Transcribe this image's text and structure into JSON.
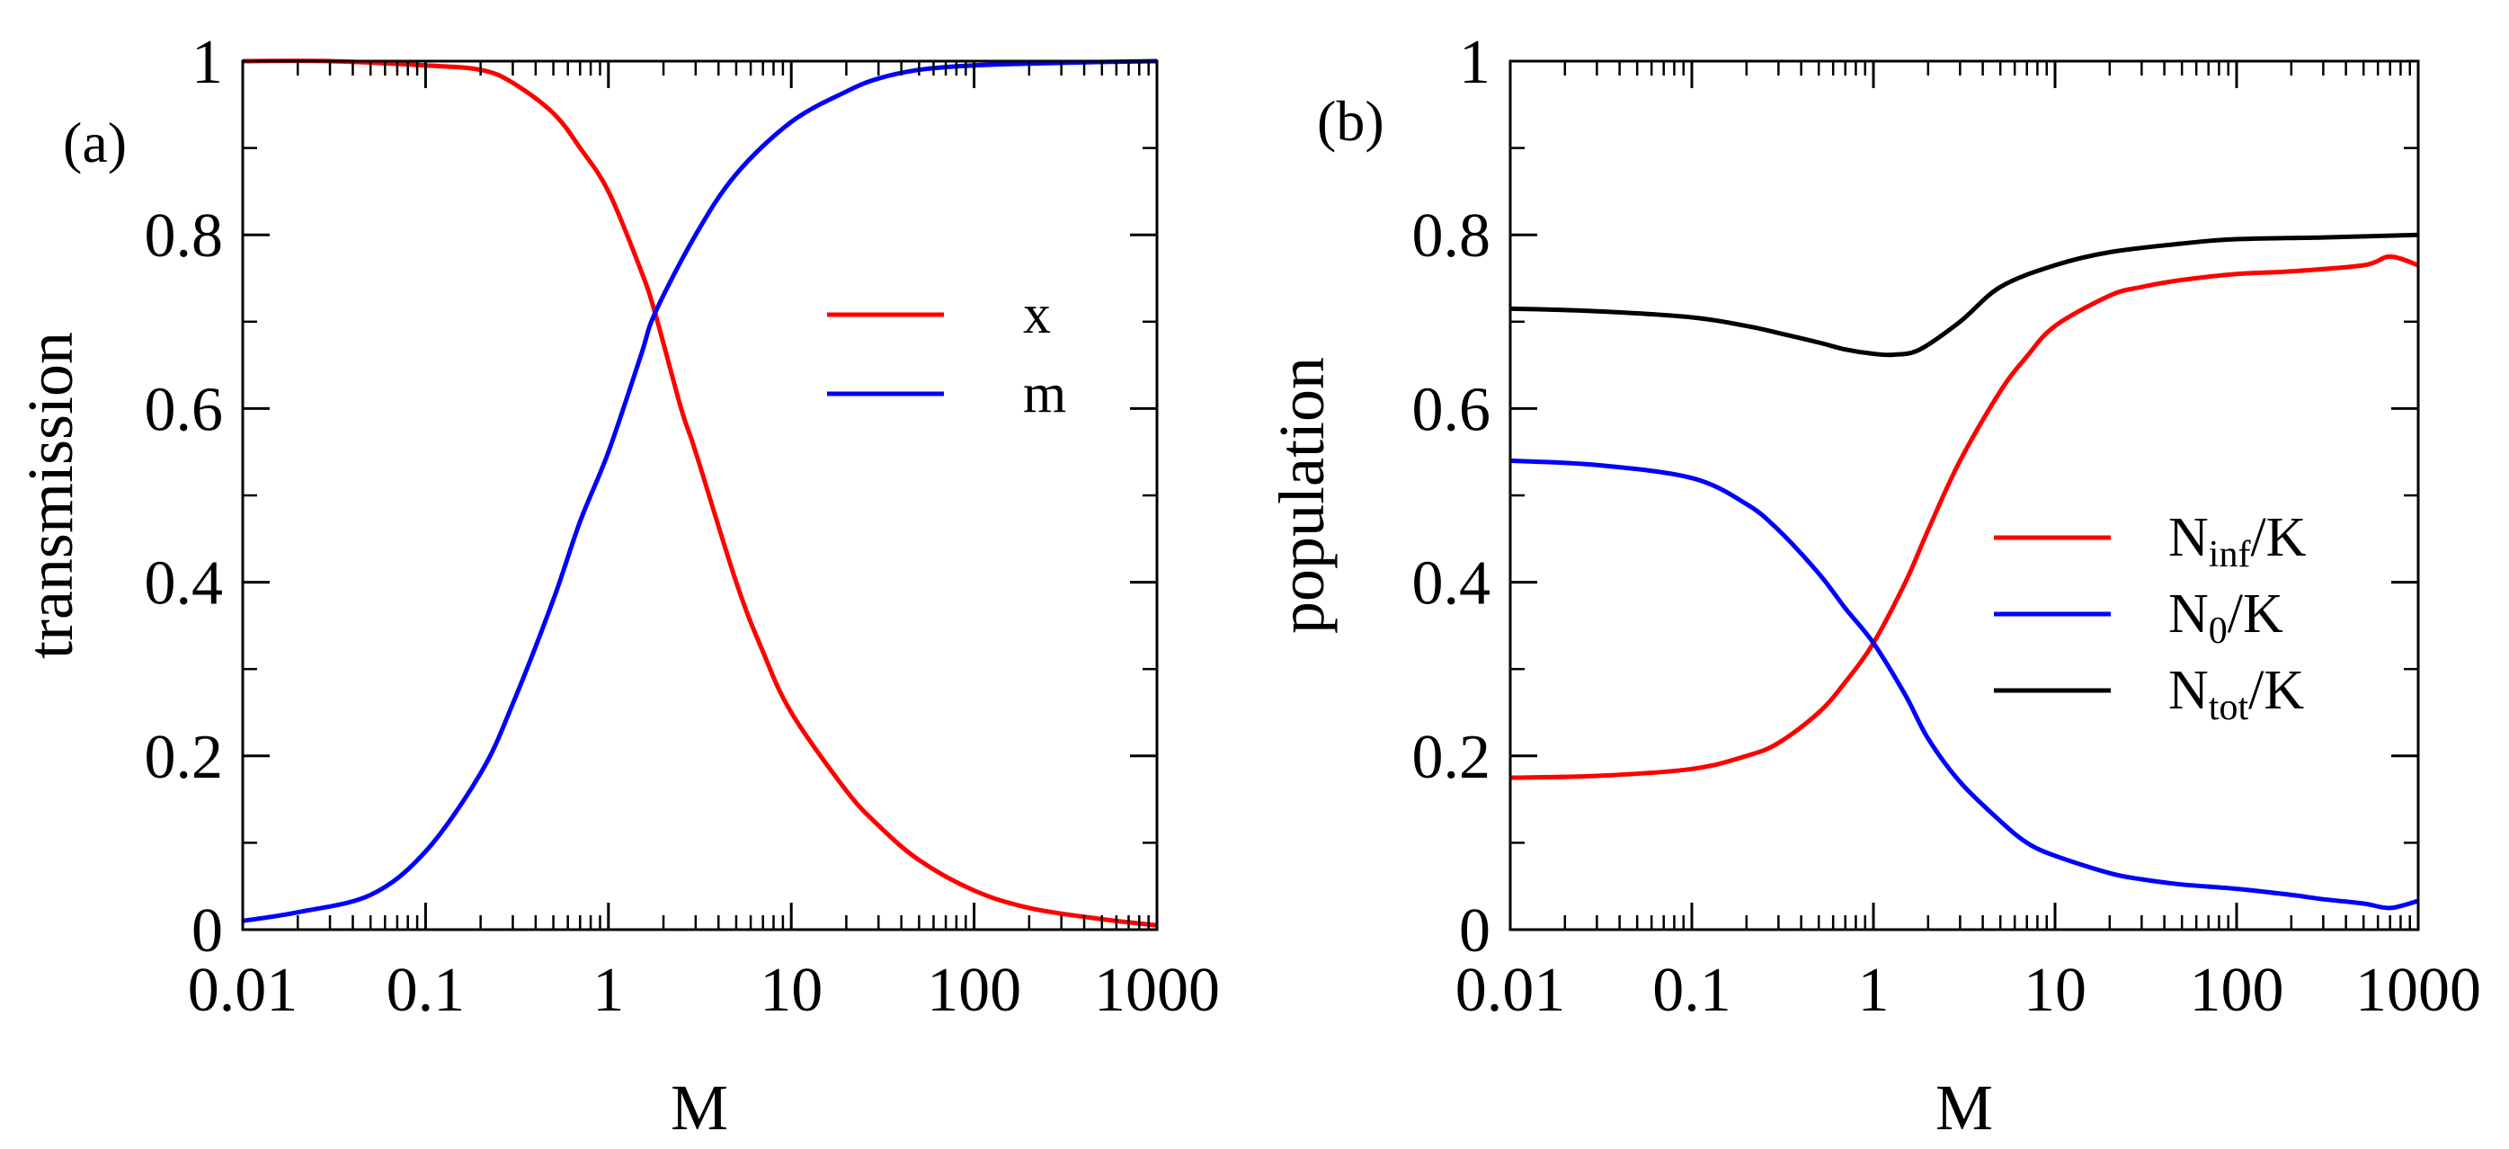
{
  "chart_data": [
    {
      "type": "line",
      "panel_label": "(a)",
      "xlabel": "M",
      "ylabel": "transmission",
      "xscale": "log",
      "xlim": [
        0.01,
        1000
      ],
      "ylim": [
        0,
        1
      ],
      "x_ticks": [
        {
          "value": 0.01,
          "label": "0.01"
        },
        {
          "value": 0.1,
          "label": "0.1"
        },
        {
          "value": 1,
          "label": "1"
        },
        {
          "value": 10,
          "label": "10"
        },
        {
          "value": 100,
          "label": "100"
        },
        {
          "value": 1000,
          "label": "1000"
        }
      ],
      "y_ticks": [
        {
          "value": 0,
          "label": "0"
        },
        {
          "value": 0.2,
          "label": "0.2"
        },
        {
          "value": 0.4,
          "label": "0.4"
        },
        {
          "value": 0.6,
          "label": "0.6"
        },
        {
          "value": 0.8,
          "label": "0.8"
        },
        {
          "value": 1,
          "label": "1"
        }
      ],
      "legend_position": "center-right",
      "series": [
        {
          "name": "x",
          "label": "x",
          "color": "#ff0000",
          "x": [
            0.01,
            0.03,
            0.1,
            0.2,
            0.3,
            0.5,
            0.7,
            1,
            1.5,
            1.8,
            2.5,
            3,
            5,
            7,
            10,
            20,
            30,
            50,
            100,
            200,
            500,
            1000
          ],
          "y": [
            1.0,
            1.0,
            0.995,
            0.99,
            0.975,
            0.94,
            0.9,
            0.85,
            0.76,
            0.71,
            0.6,
            0.55,
            0.4,
            0.32,
            0.25,
            0.16,
            0.12,
            0.08,
            0.045,
            0.025,
            0.012,
            0.005
          ]
        },
        {
          "name": "m",
          "label": "m",
          "color": "#0000ff",
          "x": [
            0.01,
            0.02,
            0.05,
            0.1,
            0.2,
            0.3,
            0.5,
            0.7,
            1,
            1.5,
            1.8,
            3,
            5,
            10,
            20,
            30,
            50,
            100,
            300,
            1000
          ],
          "y": [
            0.01,
            0.02,
            0.04,
            0.09,
            0.18,
            0.26,
            0.38,
            0.47,
            0.55,
            0.66,
            0.71,
            0.8,
            0.87,
            0.93,
            0.965,
            0.98,
            0.99,
            0.995,
            0.998,
            1.0
          ]
        }
      ]
    },
    {
      "type": "line",
      "panel_label": "(b)",
      "xlabel": "M",
      "ylabel": "population",
      "xscale": "log",
      "xlim": [
        0.01,
        1000
      ],
      "ylim": [
        0,
        1
      ],
      "x_ticks": [
        {
          "value": 0.01,
          "label": "0.01"
        },
        {
          "value": 0.1,
          "label": "0.1"
        },
        {
          "value": 1,
          "label": "1"
        },
        {
          "value": 10,
          "label": "10"
        },
        {
          "value": 100,
          "label": "100"
        },
        {
          "value": 1000,
          "label": "1000"
        }
      ],
      "y_ticks": [
        {
          "value": 0,
          "label": "0"
        },
        {
          "value": 0.2,
          "label": "0.2"
        },
        {
          "value": 0.4,
          "label": "0.4"
        },
        {
          "value": 0.6,
          "label": "0.6"
        },
        {
          "value": 0.8,
          "label": "0.8"
        },
        {
          "value": 1,
          "label": "1"
        }
      ],
      "legend_position": "lower-right",
      "series": [
        {
          "name": "N_inf/K",
          "label_main": "N",
          "label_sub": "inf",
          "label_tail": "/K",
          "color": "#ff0000",
          "x": [
            0.01,
            0.03,
            0.1,
            0.2,
            0.3,
            0.5,
            0.7,
            1,
            1.5,
            2,
            3,
            5,
            7,
            10,
            20,
            30,
            50,
            100,
            200,
            500,
            700,
            1000
          ],
          "y": [
            0.175,
            0.177,
            0.185,
            0.2,
            0.215,
            0.25,
            0.285,
            0.33,
            0.4,
            0.46,
            0.54,
            0.62,
            0.66,
            0.695,
            0.73,
            0.74,
            0.748,
            0.755,
            0.758,
            0.765,
            0.775,
            0.765
          ]
        },
        {
          "name": "N_0/K",
          "label_main": "N",
          "label_sub": "0",
          "label_tail": "/K",
          "color": "#0000ff",
          "x": [
            0.01,
            0.03,
            0.1,
            0.2,
            0.3,
            0.5,
            0.7,
            1,
            1.5,
            2,
            3,
            5,
            7,
            10,
            20,
            30,
            50,
            100,
            200,
            300,
            500,
            700,
            1000
          ],
          "y": [
            0.54,
            0.535,
            0.52,
            0.49,
            0.46,
            0.41,
            0.37,
            0.33,
            0.27,
            0.22,
            0.17,
            0.125,
            0.1,
            0.085,
            0.065,
            0.058,
            0.052,
            0.047,
            0.04,
            0.035,
            0.03,
            0.025,
            0.033
          ]
        },
        {
          "name": "N_tot/K",
          "label_main": "N",
          "label_sub": "tot",
          "label_tail": "/K",
          "color": "#000000",
          "x": [
            0.01,
            0.03,
            0.1,
            0.2,
            0.3,
            0.5,
            0.7,
            1,
            1.3,
            1.8,
            3,
            5,
            10,
            20,
            50,
            100,
            300,
            1000
          ],
          "y": [
            0.715,
            0.712,
            0.705,
            0.695,
            0.687,
            0.676,
            0.668,
            0.663,
            0.662,
            0.668,
            0.7,
            0.74,
            0.765,
            0.78,
            0.79,
            0.795,
            0.797,
            0.8
          ]
        }
      ]
    }
  ]
}
